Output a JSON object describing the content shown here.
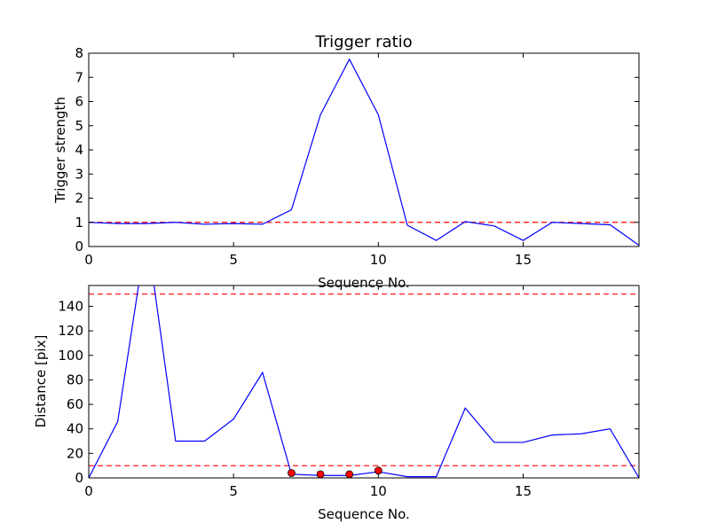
{
  "chart_data": [
    {
      "type": "line",
      "title": "Trigger ratio",
      "xlabel": "Sequence No.",
      "ylabel": "Trigger strength",
      "xlim": [
        0,
        19
      ],
      "ylim": [
        0,
        8
      ],
      "xticks": [
        0,
        5,
        10,
        15
      ],
      "yticks": [
        0,
        1,
        2,
        3,
        4,
        5,
        6,
        7,
        8
      ],
      "grid": false,
      "series": [
        {
          "color": "#0000ff",
          "style": "solid",
          "x": [
            0,
            1,
            2,
            3,
            4,
            5,
            6,
            7,
            8,
            9,
            10,
            11,
            12,
            13,
            14,
            15,
            16,
            17,
            18,
            19
          ],
          "y": [
            1.0,
            0.95,
            0.95,
            1.0,
            0.92,
            0.95,
            0.92,
            1.52,
            5.45,
            7.75,
            5.45,
            0.88,
            0.25,
            1.03,
            0.85,
            0.25,
            1.0,
            0.95,
            0.9,
            0.05
          ]
        }
      ],
      "hlines": [
        {
          "y": 1.0,
          "color": "#ff0000",
          "style": "dashed"
        }
      ]
    },
    {
      "type": "line",
      "title": "",
      "xlabel": "Sequence No.",
      "ylabel": "Distance [pix]",
      "xlim": [
        0,
        19
      ],
      "ylim": [
        0,
        157
      ],
      "xticks": [
        0,
        5,
        10,
        15
      ],
      "yticks": [
        0,
        20,
        40,
        60,
        80,
        100,
        120,
        140
      ],
      "grid": false,
      "series": [
        {
          "color": "#0000ff",
          "style": "solid",
          "x": [
            0,
            1,
            2,
            3,
            4,
            5,
            6,
            7,
            8,
            9,
            10,
            11,
            12,
            13,
            14,
            15,
            16,
            17,
            18,
            19
          ],
          "y": [
            0,
            46,
            200,
            30,
            30,
            48,
            86,
            3,
            2,
            2,
            5,
            1,
            1,
            57,
            29,
            29,
            35,
            36,
            40,
            0
          ]
        },
        {
          "color": "#ff0000",
          "style": "markers",
          "x": [
            7,
            8,
            9,
            10
          ],
          "y": [
            4,
            3,
            3,
            6
          ]
        }
      ],
      "hlines": [
        {
          "y": 150,
          "color": "#ff0000",
          "style": "dashed"
        },
        {
          "y": 10,
          "color": "#ff0000",
          "style": "dashed"
        }
      ]
    }
  ]
}
